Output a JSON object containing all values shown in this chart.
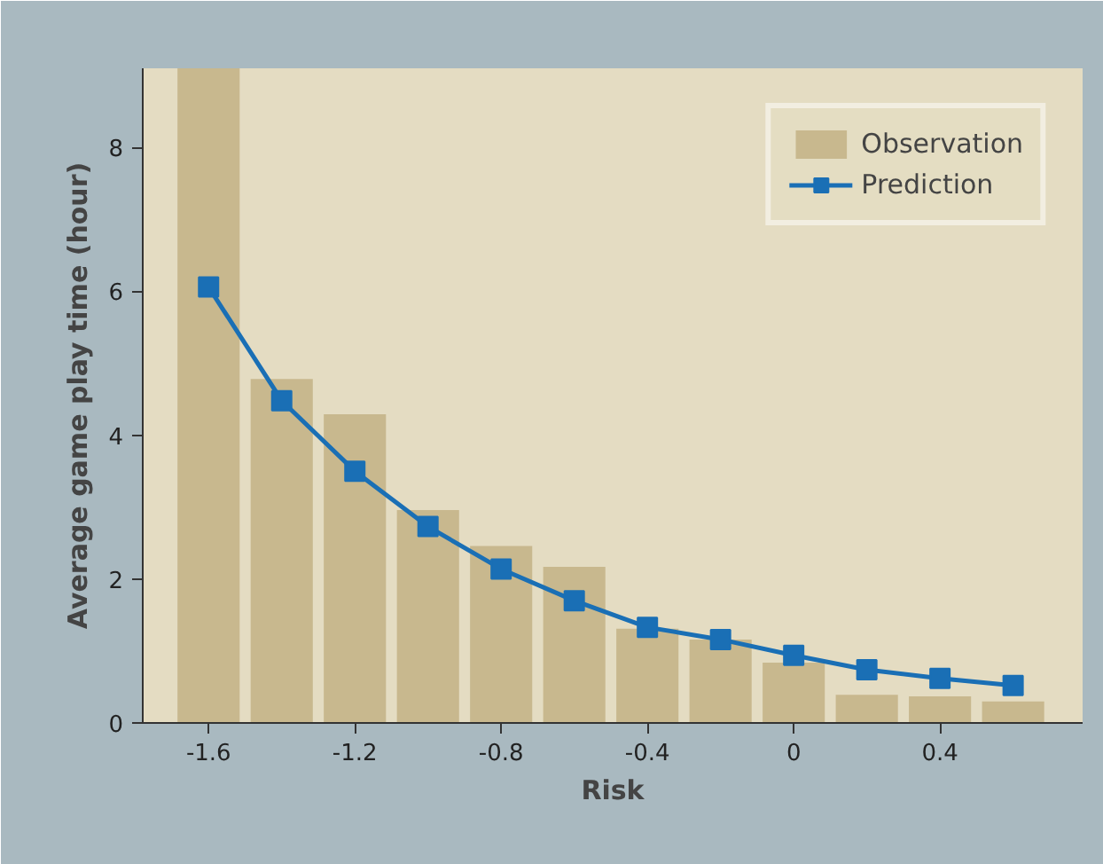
{
  "chart_data": {
    "type": "bar",
    "xlabel": "Risk",
    "ylabel": "Average game play time (hour)",
    "x": [
      -1.6,
      -1.4,
      -1.2,
      -1.0,
      -0.8,
      -0.6,
      -0.4,
      -0.2,
      0,
      0.2,
      0.4,
      0.6
    ],
    "series": [
      {
        "name": "Observation",
        "color": "#c8b88e",
        "values": [
          9.1,
          4.78,
          4.29,
          2.96,
          2.46,
          2.17,
          1.31,
          1.16,
          0.84,
          0.39,
          0.37,
          0.3
        ]
      },
      {
        "name": "Prediction",
        "type": "line",
        "color": "#1a6fb5",
        "marker": "square",
        "values": [
          6.06,
          4.48,
          3.5,
          2.73,
          2.14,
          1.7,
          1.33,
          1.16,
          0.94,
          0.74,
          0.62,
          0.52
        ]
      }
    ],
    "xlim": [
      -1.78,
      0.79
    ],
    "ylim": [
      0,
      9.1
    ],
    "xticks": [
      -1.6,
      -1.2,
      -0.8,
      -0.4,
      0,
      0.4
    ],
    "yticks": [
      0,
      2,
      4,
      6,
      8
    ],
    "grid": false,
    "legend": "top right"
  }
}
